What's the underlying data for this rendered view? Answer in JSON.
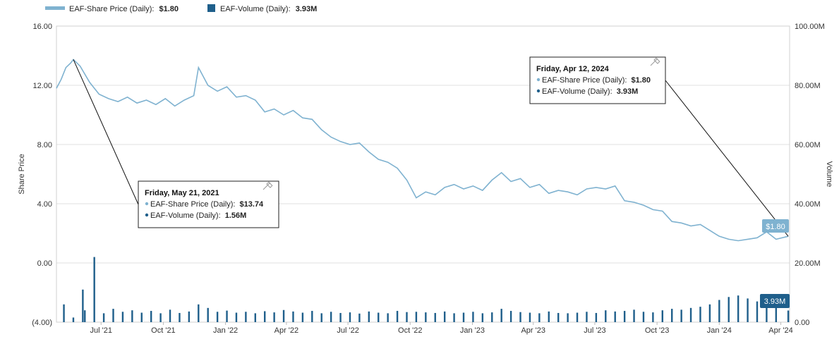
{
  "legend": [
    {
      "label": "EAF-Share Price (Daily):",
      "value": "$1.80",
      "color": "#7fb2d0"
    },
    {
      "label": "EAF-Volume (Daily):",
      "value": "3.93M",
      "color": "#1f5f8b"
    }
  ],
  "tooltips": [
    {
      "title": "Friday, May 21, 2021",
      "rows": [
        {
          "label": "EAF-Share Price (Daily):",
          "value": "$13.74",
          "color": "#7fb2d0"
        },
        {
          "label": "EAF-Volume (Daily):",
          "value": "1.56M",
          "color": "#1f5f8b"
        }
      ],
      "pin_icon": "pin-icon"
    },
    {
      "title": "Friday, Apr 12, 2024",
      "rows": [
        {
          "label": "EAF-Share Price (Daily):",
          "value": "$1.80",
          "color": "#7fb2d0"
        },
        {
          "label": "EAF-Volume (Daily):",
          "value": "3.93M",
          "color": "#1f5f8b"
        }
      ],
      "pin_icon": "pin-icon"
    }
  ],
  "badges": {
    "price": "$1.80",
    "volume": "3.93M"
  },
  "chart_data": {
    "type": "line",
    "title": "",
    "xlabel": "",
    "ylabel": "Share Price",
    "y2label": "Volume",
    "x_ticks": [
      "Jul '21",
      "Oct '21",
      "Jan '22",
      "Apr '22",
      "Jul '22",
      "Oct '22",
      "Jan '23",
      "Apr '23",
      "Jul '23",
      "Oct '23",
      "Jan '24",
      "Apr '24"
    ],
    "y_ticks": [
      "(4.00)",
      "0.00",
      "4.00",
      "8.00",
      "12.00",
      "16.00"
    ],
    "y2_ticks": [
      "0.00",
      "20.00M",
      "40.00M",
      "60.00M",
      "80.00M",
      "100.00M"
    ],
    "ylim": [
      -4,
      16
    ],
    "y2lim": [
      0,
      100000000
    ],
    "grid": "horizontal",
    "legend_position": "top-left",
    "colors": {
      "price": "#7fb2d0",
      "volume": "#1f5f8b",
      "grid": "#e2e2e2"
    },
    "series": [
      {
        "name": "EAF-Share Price (Daily)",
        "kind": "line",
        "x": [
          "2021-04-26",
          "2021-05-03",
          "2021-05-10",
          "2021-05-17",
          "2021-05-21",
          "2021-05-31",
          "2021-06-14",
          "2021-06-28",
          "2021-07-12",
          "2021-07-26",
          "2021-08-09",
          "2021-08-23",
          "2021-09-06",
          "2021-09-20",
          "2021-10-04",
          "2021-10-18",
          "2021-11-01",
          "2021-11-15",
          "2021-11-22",
          "2021-12-06",
          "2021-12-20",
          "2022-01-03",
          "2022-01-17",
          "2022-01-31",
          "2022-02-14",
          "2022-02-28",
          "2022-03-14",
          "2022-03-28",
          "2022-04-11",
          "2022-04-25",
          "2022-05-09",
          "2022-05-23",
          "2022-06-06",
          "2022-06-20",
          "2022-07-04",
          "2022-07-18",
          "2022-08-01",
          "2022-08-15",
          "2022-08-29",
          "2022-09-12",
          "2022-09-26",
          "2022-10-10",
          "2022-10-24",
          "2022-11-07",
          "2022-11-21",
          "2022-12-05",
          "2022-12-19",
          "2023-01-02",
          "2023-01-16",
          "2023-01-30",
          "2023-02-13",
          "2023-02-27",
          "2023-03-13",
          "2023-03-27",
          "2023-04-10",
          "2023-04-24",
          "2023-05-08",
          "2023-05-22",
          "2023-06-05",
          "2023-06-19",
          "2023-07-03",
          "2023-07-17",
          "2023-07-31",
          "2023-08-14",
          "2023-08-28",
          "2023-09-11",
          "2023-09-25",
          "2023-10-09",
          "2023-10-23",
          "2023-11-06",
          "2023-11-20",
          "2023-12-04",
          "2023-12-18",
          "2024-01-01",
          "2024-01-15",
          "2024-01-29",
          "2024-02-12",
          "2024-02-26",
          "2024-03-11",
          "2024-03-25",
          "2024-04-12"
        ],
        "values": [
          11.8,
          12.4,
          13.2,
          13.5,
          13.74,
          13.3,
          12.2,
          11.4,
          11.1,
          10.9,
          11.2,
          10.8,
          11.0,
          10.7,
          11.1,
          10.6,
          11.0,
          11.3,
          13.2,
          12.0,
          11.6,
          11.9,
          11.2,
          11.3,
          11.0,
          10.2,
          10.4,
          10.0,
          10.3,
          9.8,
          9.7,
          9.0,
          8.5,
          8.2,
          8.0,
          8.1,
          7.5,
          7.0,
          6.8,
          6.4,
          5.6,
          4.4,
          4.8,
          4.6,
          5.1,
          5.3,
          5.0,
          5.2,
          4.9,
          5.6,
          6.1,
          5.5,
          5.7,
          5.1,
          5.3,
          4.7,
          4.9,
          4.8,
          4.6,
          5.0,
          5.1,
          5.0,
          5.2,
          4.2,
          4.1,
          3.9,
          3.6,
          3.5,
          2.8,
          2.7,
          2.5,
          2.6,
          2.2,
          1.8,
          1.6,
          1.5,
          1.6,
          1.7,
          2.1,
          1.6,
          1.8
        ]
      },
      {
        "name": "EAF-Volume (Daily)",
        "kind": "bar",
        "x": [
          "2021-05-07",
          "2021-05-21",
          "2021-06-04",
          "2021-06-07",
          "2021-06-21",
          "2021-07-05",
          "2021-07-19",
          "2021-08-02",
          "2021-08-16",
          "2021-08-30",
          "2021-09-13",
          "2021-09-27",
          "2021-10-11",
          "2021-10-25",
          "2021-11-08",
          "2021-11-22",
          "2021-12-06",
          "2021-12-20",
          "2022-01-03",
          "2022-01-17",
          "2022-01-31",
          "2022-02-14",
          "2022-02-28",
          "2022-03-14",
          "2022-03-28",
          "2022-04-11",
          "2022-04-25",
          "2022-05-09",
          "2022-05-23",
          "2022-06-06",
          "2022-06-20",
          "2022-07-04",
          "2022-07-18",
          "2022-08-01",
          "2022-08-15",
          "2022-08-29",
          "2022-09-12",
          "2022-09-26",
          "2022-10-10",
          "2022-10-24",
          "2022-11-07",
          "2022-11-21",
          "2022-12-05",
          "2022-12-19",
          "2023-01-02",
          "2023-01-16",
          "2023-01-30",
          "2023-02-13",
          "2023-02-27",
          "2023-03-13",
          "2023-03-27",
          "2023-04-10",
          "2023-04-24",
          "2023-05-08",
          "2023-05-22",
          "2023-06-05",
          "2023-06-19",
          "2023-07-03",
          "2023-07-17",
          "2023-07-31",
          "2023-08-14",
          "2023-08-28",
          "2023-09-11",
          "2023-09-25",
          "2023-10-09",
          "2023-10-23",
          "2023-11-06",
          "2023-11-20",
          "2023-12-04",
          "2023-12-18",
          "2024-01-01",
          "2024-01-15",
          "2024-01-29",
          "2024-02-12",
          "2024-02-26",
          "2024-03-11",
          "2024-03-25",
          "2024-04-12"
        ],
        "values": [
          6000000,
          1560000,
          11000000,
          4000000,
          22000000,
          3000000,
          4500000,
          3500000,
          4000000,
          3200000,
          3800000,
          3000000,
          4200000,
          3100000,
          3600000,
          6000000,
          4800000,
          3500000,
          3900000,
          3200000,
          3500000,
          3000000,
          3700000,
          3300000,
          4100000,
          3600000,
          3200000,
          3800000,
          3000000,
          3500000,
          3100000,
          3300000,
          2900000,
          3600000,
          3200000,
          3000000,
          3800000,
          3400000,
          3500000,
          3300000,
          3100000,
          3600000,
          3000000,
          3200000,
          3500000,
          3000000,
          3300000,
          4500000,
          3800000,
          3400000,
          3200000,
          3000000,
          3600000,
          3100000,
          3000000,
          3200000,
          3500000,
          3100000,
          4000000,
          3600000,
          3800000,
          4200000,
          3500000,
          3300000,
          4000000,
          4500000,
          4200000,
          4800000,
          5200000,
          6000000,
          7500000,
          8500000,
          9000000,
          8000000,
          7000000,
          7800000,
          6500000,
          3930000
        ]
      }
    ],
    "annotations": [
      {
        "date": "Friday, May 21, 2021",
        "price": 13.74,
        "volume": "1.56M"
      },
      {
        "date": "Friday, Apr 12, 2024",
        "price": 1.8,
        "volume": "3.93M"
      }
    ]
  }
}
